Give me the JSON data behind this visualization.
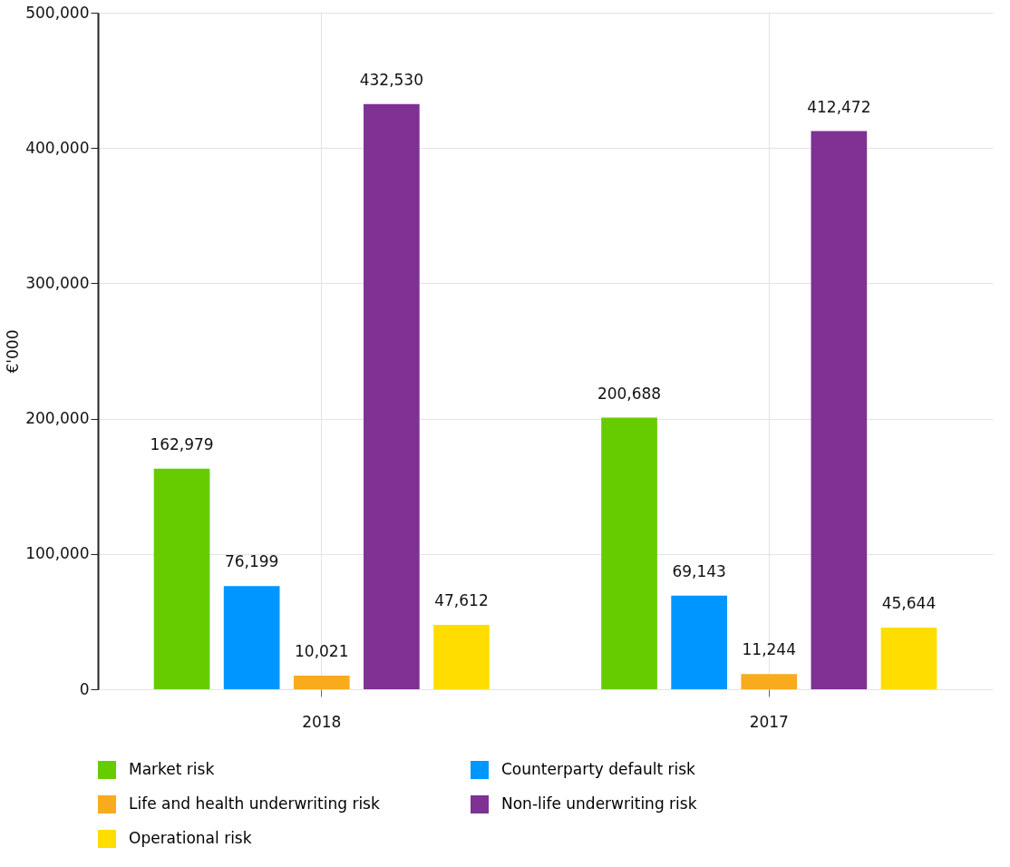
{
  "chart_data": {
    "type": "bar",
    "ylabel": "€'000",
    "categories": [
      "2018",
      "2017"
    ],
    "series": [
      {
        "name": "Market risk",
        "color": "#66cc00",
        "values": [
          162979,
          200688
        ],
        "value_labels": [
          "162,979",
          "200,688"
        ]
      },
      {
        "name": "Counterparty default risk",
        "color": "#0096ff",
        "values": [
          76199,
          69143
        ],
        "value_labels": [
          "76,199",
          "69,143"
        ]
      },
      {
        "name": "Life and health underwriting risk",
        "color": "#f8ab1c",
        "values": [
          10021,
          11244
        ],
        "value_labels": [
          "10,021",
          "11,244"
        ]
      },
      {
        "name": "Non-life underwriting risk",
        "color": "#7f3194",
        "values": [
          432530,
          412472
        ],
        "value_labels": [
          "432,530",
          "412,472"
        ]
      },
      {
        "name": "Operational risk",
        "color": "#ffdd00",
        "values": [
          47612,
          45644
        ],
        "value_labels": [
          "47,612",
          "45,644"
        ]
      }
    ],
    "ylim": [
      0,
      500000
    ],
    "yticks": [
      0,
      {
        "value": 100000,
        "label": "100,000"
      },
      {
        "value": 200000,
        "label": "200,000"
      },
      {
        "value": 300000,
        "label": "300,000"
      },
      {
        "value": 400000,
        "label": "400,000"
      },
      {
        "value": 500000,
        "label": "500,000"
      }
    ],
    "grid": true,
    "legend": "bottom"
  }
}
